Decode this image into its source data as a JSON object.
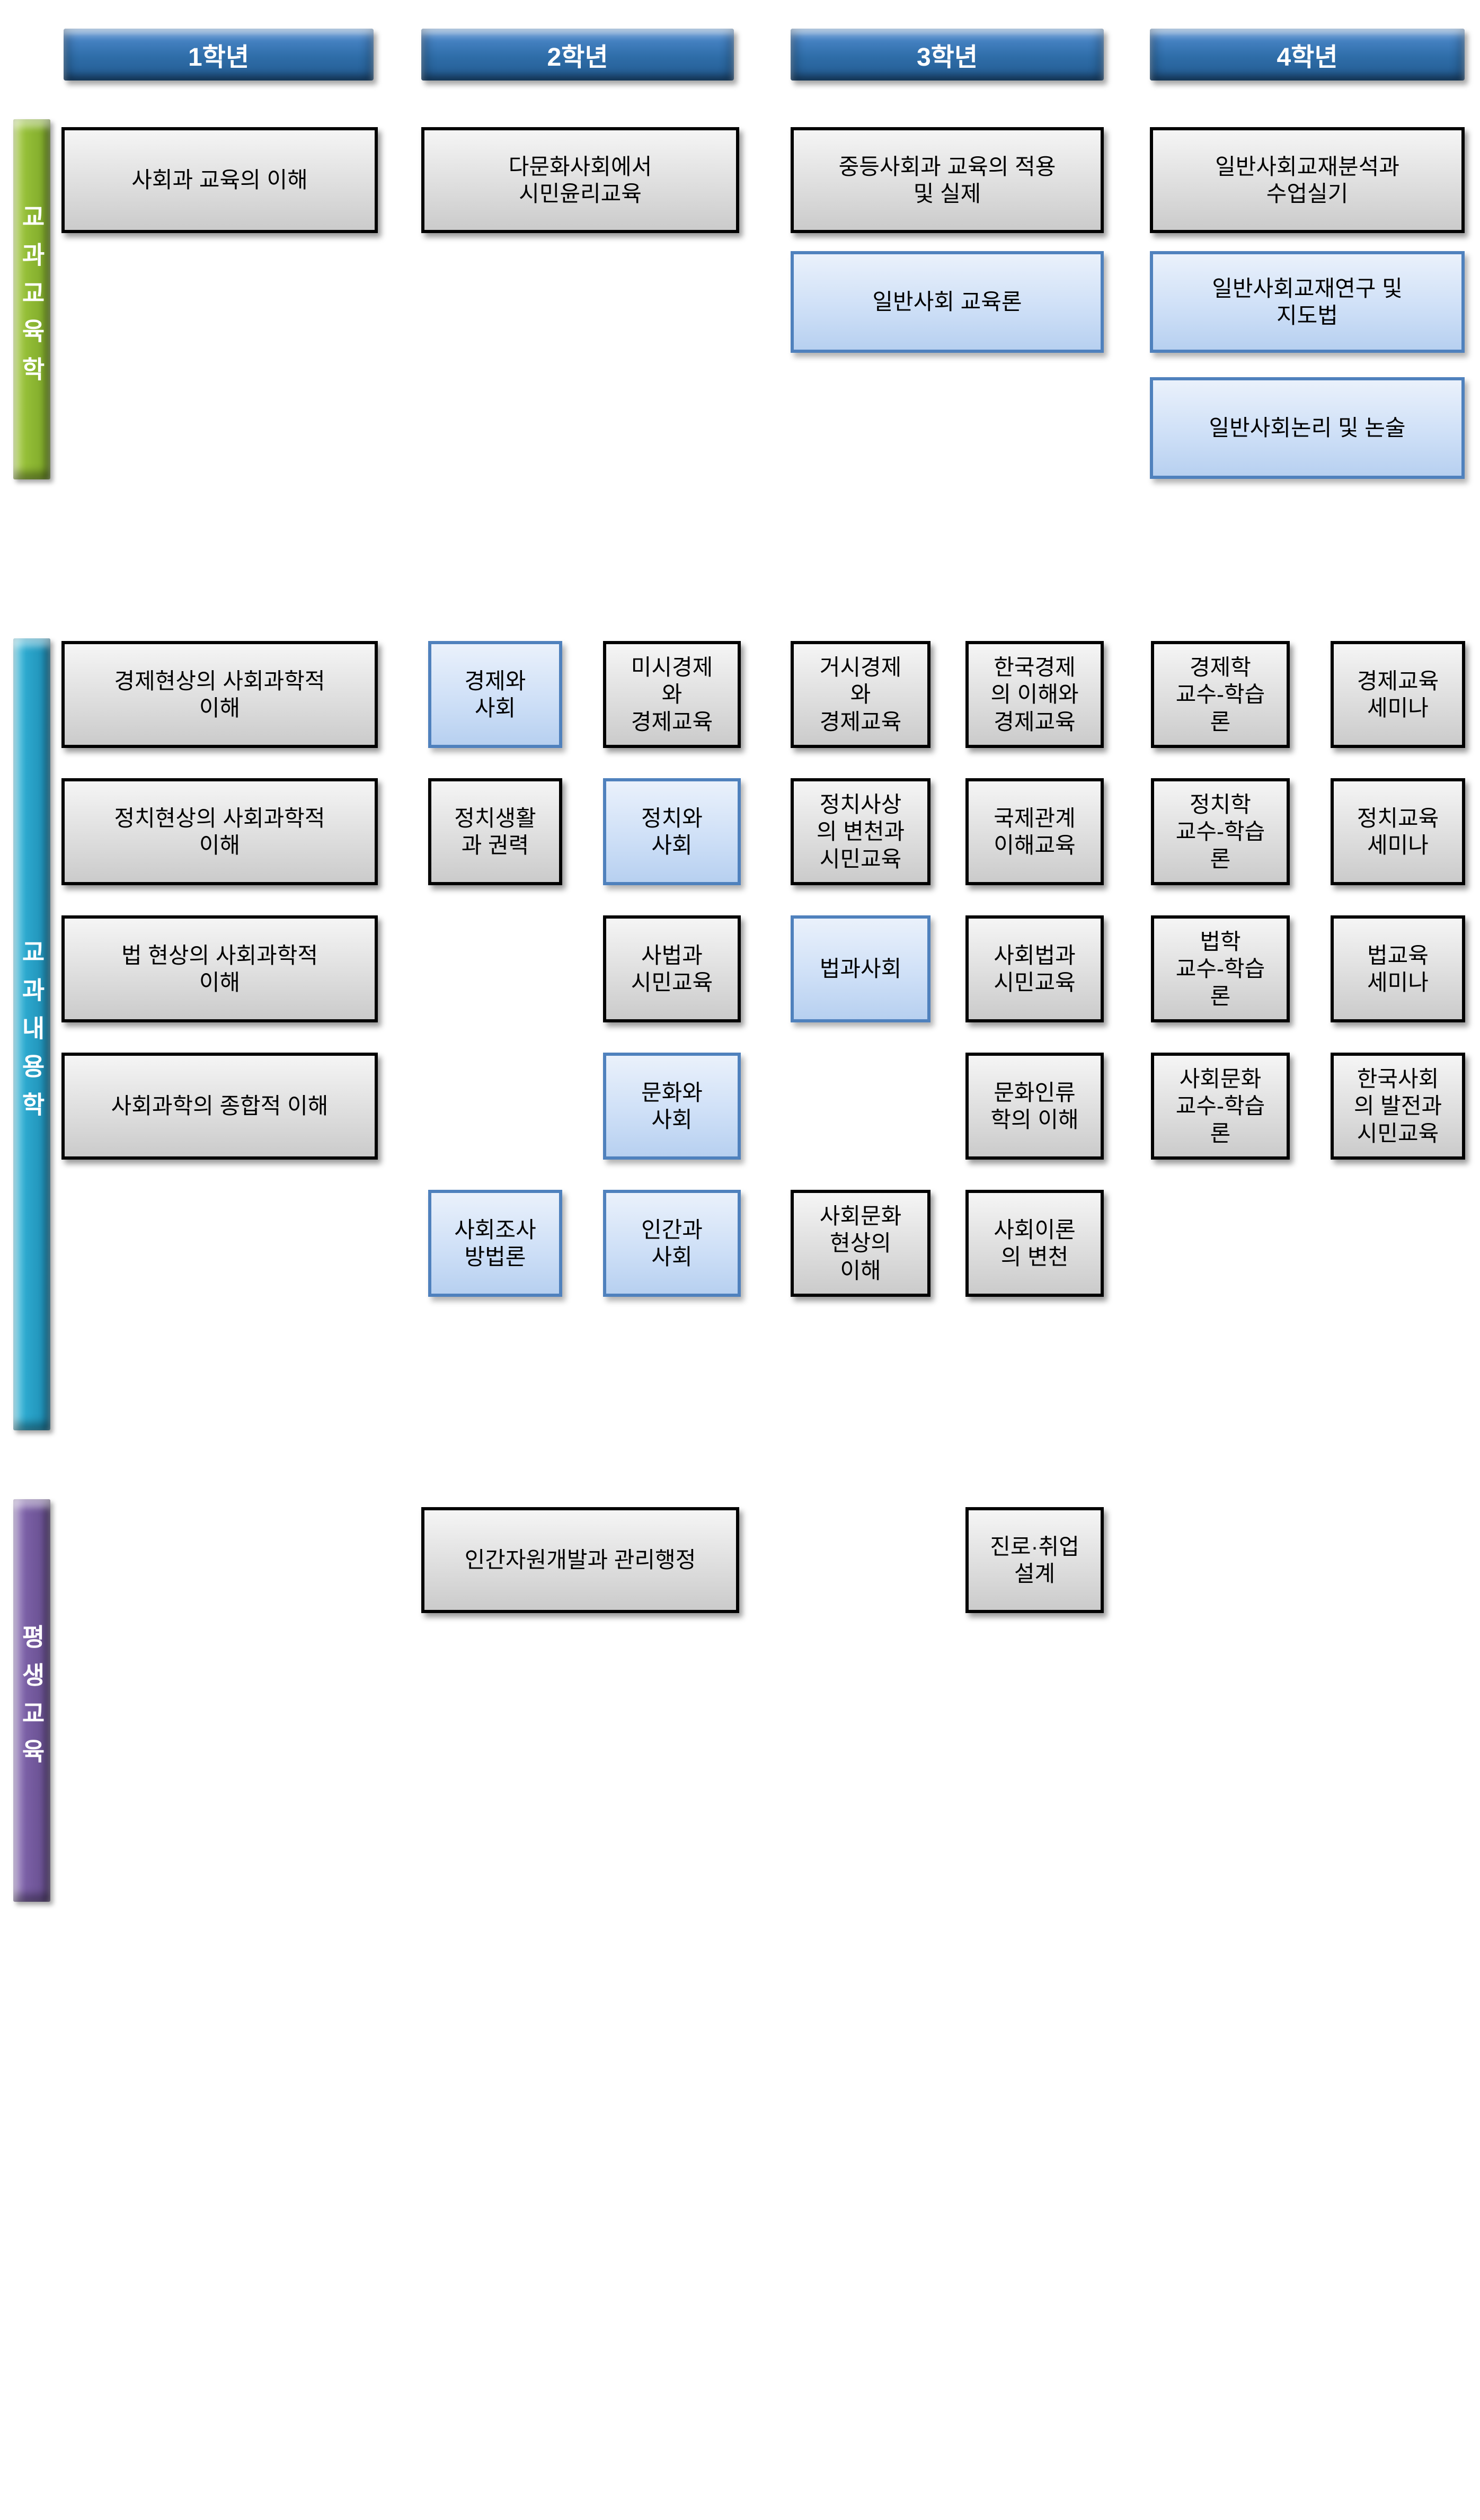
{
  "colors": {
    "header_blue": "#2e6da8",
    "bar_green": "#94be37",
    "bar_teal": "#2ca8ce",
    "bar_purple": "#7a5fa5",
    "box_gray": "#dcdcdc",
    "box_blue": "#cfe0f7",
    "box_blue_border": "#4f81bd"
  },
  "header": {
    "grades": [
      "1학년",
      "2학년",
      "3학년",
      "4학년"
    ]
  },
  "sections": {
    "pedagogy": {
      "label": "교과교육학"
    },
    "content": {
      "label": "교과내용학"
    },
    "lifelong": {
      "label": "평생교육"
    }
  },
  "courses": {
    "pedagogy": {
      "g1": [
        "사회과 교육의 이해"
      ],
      "g2": [
        "다문화사회에서\n시민윤리교육"
      ],
      "g3": [
        "중등사회과 교육의 적용\n및 실제",
        "일반사회 교육론"
      ],
      "g4": [
        "일반사회교재분석과\n수업실기",
        "일반사회교재연구 및\n지도법",
        "일반사회논리 및 논술"
      ]
    },
    "content": {
      "g1": [
        "경제현상의 사회과학적\n이해",
        "정치현상의 사회과학적\n이해",
        "법 현상의 사회과학적\n이해",
        "사회과학의 종합적 이해"
      ],
      "g2a": [
        "경제와\n사회",
        "정치생활\n과 권력",
        "사회조사\n방법론"
      ],
      "g2b": [
        "미시경제\n와\n경제교육",
        "정치와\n사회",
        "사법과\n시민교육",
        "문화와\n사회",
        "인간과\n사회"
      ],
      "g3a": [
        "거시경제\n와\n경제교육",
        "정치사상\n의 변천과\n시민교육",
        "법과사회",
        "사회문화\n현상의\n이해"
      ],
      "g3b": [
        "한국경제\n의 이해와\n경제교육",
        "국제관계\n이해교육",
        "사회법과\n시민교육",
        "문화인류\n학의 이해",
        "사회이론\n의 변천"
      ],
      "g4a": [
        "경제학\n교수-학습\n론",
        "정치학\n교수-학습\n론",
        "법학\n교수-학습\n론",
        "사회문화\n교수-학습\n론"
      ],
      "g4b": [
        "경제교육\n세미나",
        "정치교육\n세미나",
        "법교육\n세미나",
        "한국사회\n의 발전과\n시민교육"
      ]
    },
    "lifelong": {
      "g2": [
        "인간자원개발과 관리행정"
      ],
      "g3": [
        "진로·취업\n설계"
      ]
    }
  }
}
